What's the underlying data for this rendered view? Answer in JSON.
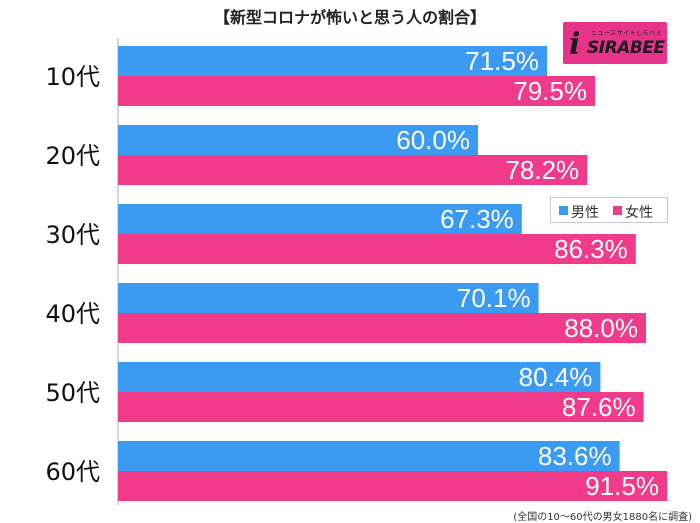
{
  "chart_data": {
    "type": "bar",
    "orientation": "horizontal",
    "title": "【新型コロナが怖いと思う人の割合】",
    "categories": [
      "10代",
      "20代",
      "30代",
      "40代",
      "50代",
      "60代"
    ],
    "series": [
      {
        "name": "男性",
        "color": "#3b9bf2",
        "values": [
          71.5,
          60.0,
          67.3,
          70.1,
          80.4,
          83.6
        ],
        "labels": [
          "71.5%",
          "60.0%",
          "67.3%",
          "70.1%",
          "80.4%",
          "83.6%"
        ]
      },
      {
        "name": "女性",
        "color": "#ef3b8a",
        "values": [
          79.5,
          78.2,
          86.3,
          88.0,
          87.6,
          91.5
        ],
        "labels": [
          "79.5%",
          "78.2%",
          "86.3%",
          "88.0%",
          "87.6%",
          "91.5%"
        ]
      }
    ],
    "xlim": [
      0,
      100
    ],
    "grid": false,
    "legend_position": "right"
  },
  "logo": {
    "brand": "SIRABEE",
    "tagline": "ニュースサイトしらべぇ",
    "mark": "i"
  },
  "footnote": "(全国の10〜60代の男女1880名に調査)"
}
